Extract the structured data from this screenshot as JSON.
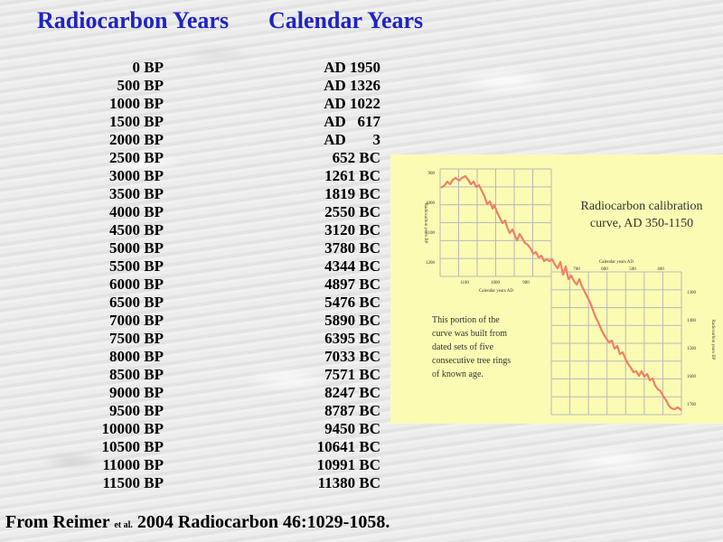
{
  "header": {
    "radiocarbon_label": "Radiocarbon Years",
    "calendar_label": "Calendar Years"
  },
  "conversion_table": [
    {
      "bp": "0 BP",
      "calendar": "AD 1950"
    },
    {
      "bp": "500 BP",
      "calendar": "AD 1326"
    },
    {
      "bp": "1000 BP",
      "calendar": "AD 1022"
    },
    {
      "bp": "1500 BP",
      "calendar": "AD   617"
    },
    {
      "bp": "2000 BP",
      "calendar": "AD       3"
    },
    {
      "bp": "2500 BP",
      "calendar": "652 BC"
    },
    {
      "bp": "3000 BP",
      "calendar": "1261 BC"
    },
    {
      "bp": "3500 BP",
      "calendar": "1819 BC"
    },
    {
      "bp": "4000 BP",
      "calendar": "2550 BC"
    },
    {
      "bp": "4500 BP",
      "calendar": "3120 BC"
    },
    {
      "bp": "5000 BP",
      "calendar": "3780 BC"
    },
    {
      "bp": "5500 BP",
      "calendar": "4344 BC"
    },
    {
      "bp": "6000 BP",
      "calendar": "4897 BC"
    },
    {
      "bp": "6500 BP",
      "calendar": "5476 BC"
    },
    {
      "bp": "7000 BP",
      "calendar": "5890 BC"
    },
    {
      "bp": "7500 BP",
      "calendar": "6395 BC"
    },
    {
      "bp": "8000 BP",
      "calendar": "7033 BC"
    },
    {
      "bp": "8500 BP",
      "calendar": "7571 BC"
    },
    {
      "bp": "9000 BP",
      "calendar": "8247 BC"
    },
    {
      "bp": "9500 BP",
      "calendar": "8787 BC"
    },
    {
      "bp": "10000 BP",
      "calendar": "9450 BC"
    },
    {
      "bp": "10500 BP",
      "calendar": "10641 BC"
    },
    {
      "bp": "11000 BP",
      "calendar": "10991 BC"
    },
    {
      "bp": "11500 BP",
      "calendar": "11380 BC"
    }
  ],
  "figure": {
    "title_line1": "Radiocarbon calibration",
    "title_line2": "curve, AD 350-1150",
    "note_lines": [
      "This portion of the",
      "curve was built from",
      "dated sets of five",
      "consecutive tree rings",
      "of known age."
    ],
    "upper_ylabel": "Radiocarbon years BP",
    "upper_xlabel": "Calendar years AD",
    "upper_yticks": [
      "900",
      "1000",
      "1100",
      "1200"
    ],
    "upper_xticks": [
      "1100",
      "1000",
      "900"
    ],
    "lower_ylabel": "Radiocarbon years BP",
    "lower_xlabel": "Calendar years AD",
    "lower_yticks": [
      "1300",
      "1400",
      "1500",
      "1600",
      "1700"
    ],
    "lower_xticks": [
      "700",
      "600",
      "500",
      "400"
    ],
    "curve_color": "#ef7f67",
    "grid_color": "#b9b9b9"
  },
  "citation": {
    "prefix": "From Reimer",
    "etal": "et al.",
    "suffix": "2004 Radiocarbon 46:1029-1058."
  }
}
